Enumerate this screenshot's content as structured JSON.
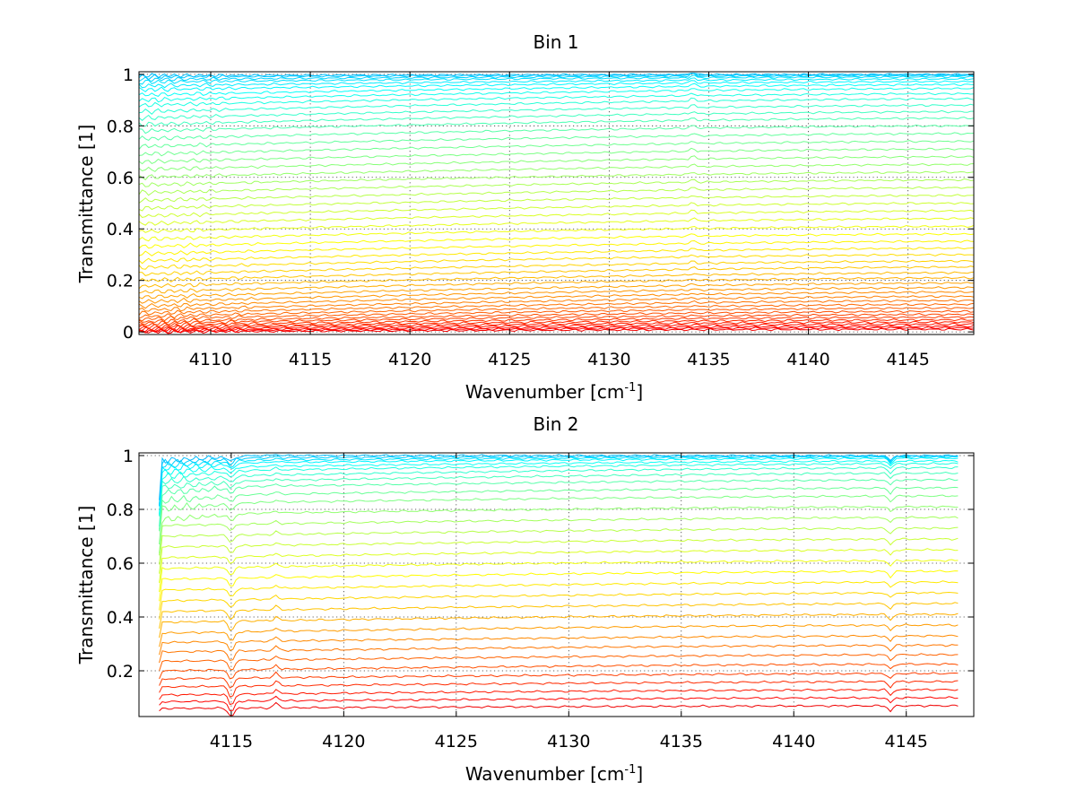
{
  "chart_data": [
    {
      "type": "line",
      "title": "Bin 1",
      "xlabel": "Wavenumber [cm",
      "xlabel_sup": "-1",
      "xlabel_end": "]",
      "ylabel": "Transmittance [1]",
      "xlim": [
        4106.4,
        4148.3
      ],
      "ylim": [
        -0.01,
        1.01
      ],
      "xticks": [
        4110,
        4115,
        4120,
        4125,
        4130,
        4135,
        4140,
        4145
      ],
      "xtick_labels": [
        "4110",
        "4115",
        "4120",
        "4125",
        "4130",
        "4135",
        "4140",
        "4145"
      ],
      "yticks": [
        0,
        0.2,
        0.4,
        0.6,
        0.8,
        1
      ],
      "ytick_labels": [
        "0",
        "0.2",
        "0.4",
        "0.6",
        "0.8",
        "1"
      ],
      "grid": true,
      "legend": "none",
      "colormap": "jet (red = low transmittance, yellow to cyan near 1)",
      "series_start_values_at_4106": [
        0.0,
        0.003,
        0.006,
        0.01,
        0.015,
        0.02,
        0.026,
        0.033,
        0.04,
        0.05,
        0.06,
        0.072,
        0.085,
        0.1,
        0.117,
        0.135,
        0.155,
        0.177,
        0.2,
        0.224,
        0.25,
        0.276,
        0.303,
        0.331,
        0.36,
        0.39,
        0.42,
        0.45,
        0.48,
        0.51,
        0.54,
        0.57,
        0.6,
        0.63,
        0.66,
        0.69,
        0.72,
        0.75,
        0.78,
        0.805,
        0.83,
        0.855,
        0.88,
        0.9,
        0.92,
        0.94,
        0.955,
        0.97,
        0.98,
        0.99,
        0.995
      ],
      "series_end_values_at_4148": [
        0.01,
        0.016,
        0.022,
        0.03,
        0.038,
        0.047,
        0.057,
        0.068,
        0.08,
        0.093,
        0.107,
        0.122,
        0.138,
        0.155,
        0.172,
        0.19,
        0.21,
        0.23,
        0.252,
        0.275,
        0.3,
        0.325,
        0.352,
        0.38,
        0.41,
        0.44,
        0.47,
        0.5,
        0.53,
        0.56,
        0.59,
        0.62,
        0.65,
        0.68,
        0.71,
        0.74,
        0.77,
        0.8,
        0.83,
        0.855,
        0.88,
        0.905,
        0.925,
        0.945,
        0.96,
        0.972,
        0.982,
        0.99,
        0.995,
        0.998,
        1.0
      ],
      "features": [
        {
          "x": 4134.2,
          "description": "small upward spike on each curve"
        },
        {
          "x": 4109.5,
          "description": "small dip on upper curves"
        }
      ]
    },
    {
      "type": "line",
      "title": "Bin 2",
      "xlabel": "Wavenumber [cm",
      "xlabel_sup": "-1",
      "xlabel_end": "]",
      "ylabel": "Transmittance [1]",
      "xlim": [
        4110.9,
        4148.0
      ],
      "ylim": [
        0.03,
        1.01
      ],
      "xticks": [
        4115,
        4120,
        4125,
        4130,
        4135,
        4140,
        4145
      ],
      "xtick_labels": [
        "4115",
        "4120",
        "4125",
        "4130",
        "4135",
        "4140",
        "4145"
      ],
      "yticks": [
        0.2,
        0.4,
        0.6,
        0.8,
        1
      ],
      "ytick_labels": [
        "0.2",
        "0.4",
        "0.6",
        "0.8",
        "1"
      ],
      "grid": true,
      "legend": "none",
      "colormap": "jet (red = low transmittance, yellow to cyan near 1)",
      "series_start_values_at_4112": [
        0.06,
        0.085,
        0.11,
        0.14,
        0.17,
        0.2,
        0.235,
        0.27,
        0.305,
        0.34,
        0.38,
        0.42,
        0.46,
        0.5,
        0.54,
        0.58,
        0.62,
        0.66,
        0.7,
        0.74,
        0.78,
        0.82,
        0.85,
        0.88,
        0.9,
        0.92,
        0.94,
        0.955,
        0.97,
        0.98,
        0.99,
        1.0
      ],
      "series_end_values_at_4147": [
        0.07,
        0.1,
        0.13,
        0.16,
        0.19,
        0.225,
        0.26,
        0.295,
        0.33,
        0.37,
        0.41,
        0.45,
        0.49,
        0.53,
        0.57,
        0.61,
        0.65,
        0.69,
        0.73,
        0.77,
        0.81,
        0.85,
        0.88,
        0.91,
        0.935,
        0.955,
        0.97,
        0.98,
        0.99,
        0.995,
        0.998,
        1.0
      ],
      "features": [
        {
          "x": 4115.0,
          "description": "absorption dip on each curve"
        },
        {
          "x": 4117.0,
          "description": "small spike"
        },
        {
          "x": 4144.3,
          "description": "small dip"
        }
      ]
    }
  ]
}
